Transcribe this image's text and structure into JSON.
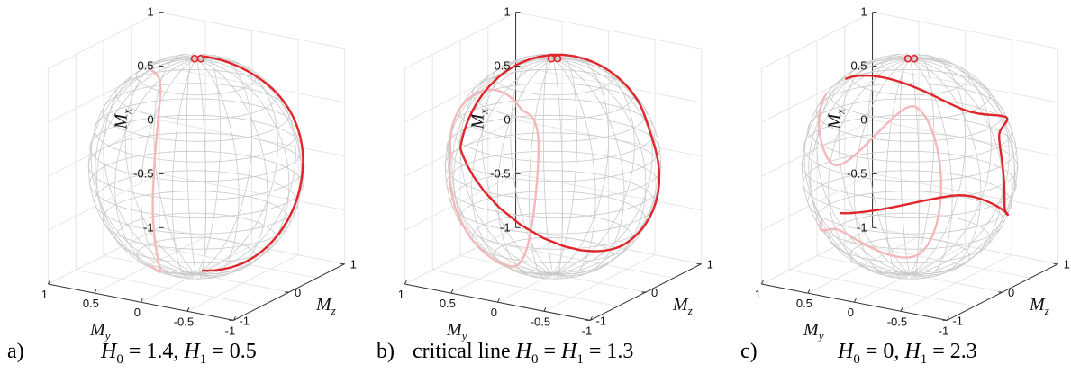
{
  "chart_data": [
    {
      "type": "line3d",
      "panel_label": "a)",
      "caption_text": "H0 = 1.4, H1 = 0.5",
      "params": {
        "H0": "1.4",
        "H1": "0.5"
      },
      "xlabel": "My",
      "ylabel": "Mz",
      "zlabel": "Mx",
      "zticks": [
        "-1",
        "-0.5",
        "0",
        "0.5",
        "1"
      ],
      "xticks": [
        "1",
        "0.5",
        "0",
        "-0.5",
        "-1"
      ],
      "yticks": [
        "-1",
        "0",
        "1"
      ],
      "ylim": [
        -1,
        1
      ],
      "xlim": [
        -1,
        1
      ],
      "zlim": [
        -1,
        1
      ],
      "trajectory": [
        {
          "My": 0.0,
          "Mz": 0.1,
          "Mx": 1.0
        },
        {
          "My": -0.45,
          "Mz": 0.3,
          "Mx": 0.88
        },
        {
          "My": -0.75,
          "Mz": 0.62,
          "Mx": 0.2
        },
        {
          "My": -0.75,
          "Mz": 0.64,
          "Mx": -0.2
        },
        {
          "My": -0.45,
          "Mz": 0.3,
          "Mx": -0.88
        },
        {
          "My": 0.0,
          "Mz": 0.1,
          "Mx": -1.0
        }
      ],
      "line_color": "#e0262b",
      "back_color": "#f4b8bb",
      "grid": true
    },
    {
      "type": "line3d",
      "panel_label": "b)",
      "caption_text": "critical line H0 = H1 = 1.3",
      "params": {
        "H0": "1.3",
        "H1": "1.3"
      },
      "xlabel": "My",
      "ylabel": "Mz",
      "zlabel": "Mx",
      "zticks": [
        "-1",
        "-0.5",
        "0",
        "0.5",
        "1"
      ],
      "xticks": [
        "1",
        "0.5",
        "0",
        "-0.5",
        "-1"
      ],
      "yticks": [
        "-1",
        "0",
        "1"
      ],
      "ylim": [
        -1,
        1
      ],
      "xlim": [
        -1,
        1
      ],
      "zlim": [
        -1,
        1
      ],
      "trajectory": [
        {
          "My": 1.0,
          "Mz": 0.0,
          "Mx": 0.0
        },
        {
          "My": 0.2,
          "Mz": 0.2,
          "Mx": 0.5
        },
        {
          "My": -0.85,
          "Mz": 0.5,
          "Mx": 0.8
        },
        {
          "My": -0.95,
          "Mz": 0.3,
          "Mx": 0.3
        },
        {
          "My": -0.6,
          "Mz": 0.5,
          "Mx": -0.9
        },
        {
          "My": 1.0,
          "Mz": 0.0,
          "Mx": 0.0
        }
      ],
      "line_color": "#e0262b",
      "back_color": "#f4b8bb",
      "grid": true
    },
    {
      "type": "line3d",
      "panel_label": "c)",
      "caption_text": "H0 = 0, H1 = 2.3",
      "params": {
        "H0": "0",
        "H1": "2.3"
      },
      "xlabel": "My",
      "ylabel": "Mz",
      "zlabel": "Mx",
      "zticks": [
        "-1",
        "-0.5",
        "0",
        "0.5",
        "1"
      ],
      "xticks": [
        "1",
        "0.5",
        "0",
        "-0.5",
        "-1"
      ],
      "yticks": [
        "-1",
        "0",
        "1"
      ],
      "ylim": [
        -1,
        1
      ],
      "xlim": [
        -1,
        1
      ],
      "zlim": [
        -1,
        1
      ],
      "trajectory": [
        {
          "My": 0.95,
          "Mz": 0.1,
          "Mx": 0.85
        },
        {
          "My": 0.0,
          "Mz": 0.7,
          "Mx": 0.2
        },
        {
          "My": -1.0,
          "Mz": 0.1,
          "Mx": 0.45
        },
        {
          "My": -0.95,
          "Mz": 0.1,
          "Mx": -0.25
        },
        {
          "My": 0.0,
          "Mz": 0.7,
          "Mx": -0.4
        },
        {
          "My": 0.95,
          "Mz": 0.1,
          "Mx": -0.7
        }
      ],
      "line_color": "#e0262b",
      "back_color": "#f4b8bb",
      "grid": true
    }
  ]
}
